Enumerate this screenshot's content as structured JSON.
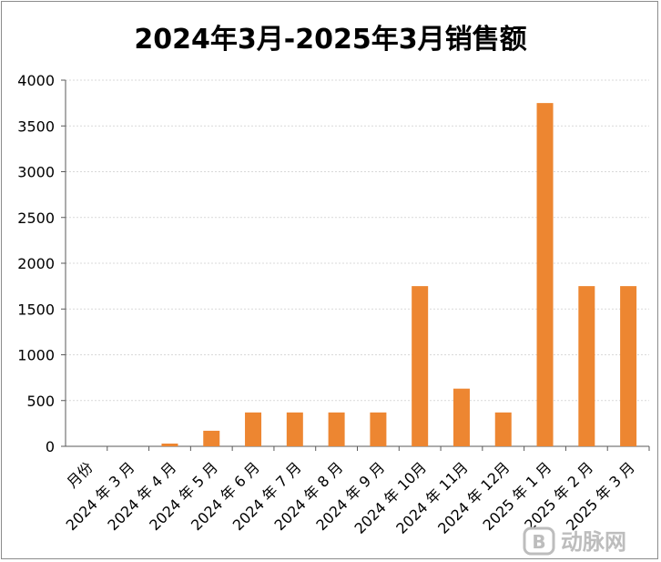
{
  "chart_data": {
    "type": "bar",
    "title": "2024年3月-2025年3月销售额",
    "categories": [
      "月份",
      "2024 年 3 月",
      "2024 年 4 月",
      "2024 年 5 月",
      "2024 年 6 月",
      "2024 年 7 月",
      "2024 年 8 月",
      "2024 年 9 月",
      "2024 年 10月",
      "2024 年 11月",
      "2024 年 12月",
      "2025 年 1 月",
      "2025 年 2 月",
      "2025 年 3 月"
    ],
    "values": [
      0,
      0,
      30,
      170,
      370,
      370,
      370,
      370,
      1750,
      630,
      370,
      3750,
      1750,
      1750
    ],
    "ylim": [
      0,
      4000
    ],
    "yticks": [
      0,
      500,
      1000,
      1500,
      2000,
      2500,
      3000,
      3500,
      4000
    ],
    "xlabel": "",
    "ylabel": "",
    "bar_color": "#ED8631",
    "grid": true,
    "grid_color": "#D9D9D9",
    "axis_color": "#595959"
  },
  "watermark": {
    "text": "动脉网",
    "icon_label": "B",
    "color": "#BDBDBD"
  }
}
